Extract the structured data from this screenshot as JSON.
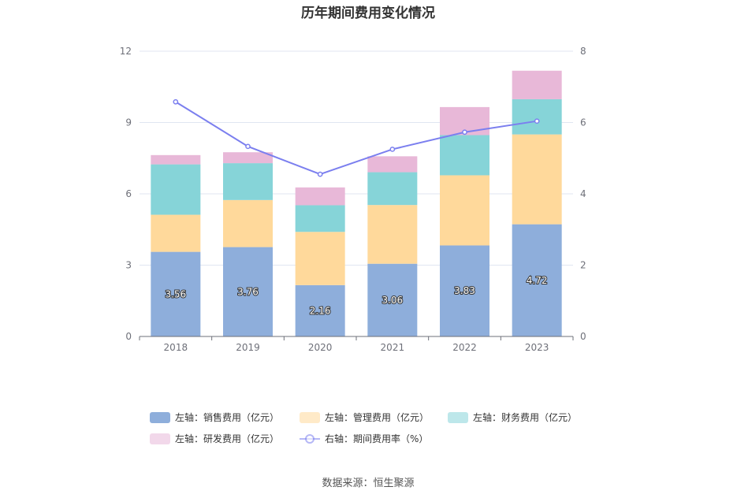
{
  "chart_data": {
    "type": "bar",
    "title": "历年期间费用变化情况",
    "categories": [
      "2018",
      "2019",
      "2020",
      "2021",
      "2022",
      "2023"
    ],
    "y_left": {
      "min": 0,
      "max": 12,
      "ticks": [
        "0",
        "3",
        "6",
        "9",
        "12"
      ]
    },
    "y_right": {
      "min": 0,
      "max": 8,
      "ticks": [
        "0",
        "2",
        "4",
        "6",
        "8"
      ]
    },
    "grid": true,
    "legend_position": "bottom",
    "series": [
      {
        "name": "左轴：销售费用（亿元）",
        "type": "bar",
        "axis": "left",
        "color": "#8eaedb",
        "values": [
          3.56,
          3.76,
          2.16,
          3.06,
          3.83,
          4.72
        ],
        "labels": [
          "3.56",
          "3.76",
          "2.16",
          "3.06",
          "3.83",
          "4.72"
        ]
      },
      {
        "name": "左轴：管理费用（亿元）",
        "type": "bar",
        "axis": "left",
        "color": "#ffd99b",
        "values": [
          1.56,
          1.98,
          2.24,
          2.47,
          2.95,
          3.78
        ]
      },
      {
        "name": "左轴：财务费用（亿元）",
        "type": "bar",
        "axis": "left",
        "color": "#86d4d8",
        "values": [
          2.12,
          1.55,
          1.12,
          1.38,
          1.69,
          1.48
        ]
      },
      {
        "name": "左轴：研发费用（亿元）",
        "type": "bar",
        "axis": "left",
        "color": "#e8b8d8",
        "values": [
          0.39,
          0.46,
          0.75,
          0.67,
          1.18,
          1.2
        ]
      },
      {
        "name": "右轴：期间费用率（%）",
        "type": "line",
        "axis": "right",
        "color": "#7b7fef",
        "values": [
          6.58,
          5.33,
          4.55,
          5.25,
          5.73,
          6.04
        ]
      }
    ],
    "source": "数据来源：恒生聚源"
  }
}
